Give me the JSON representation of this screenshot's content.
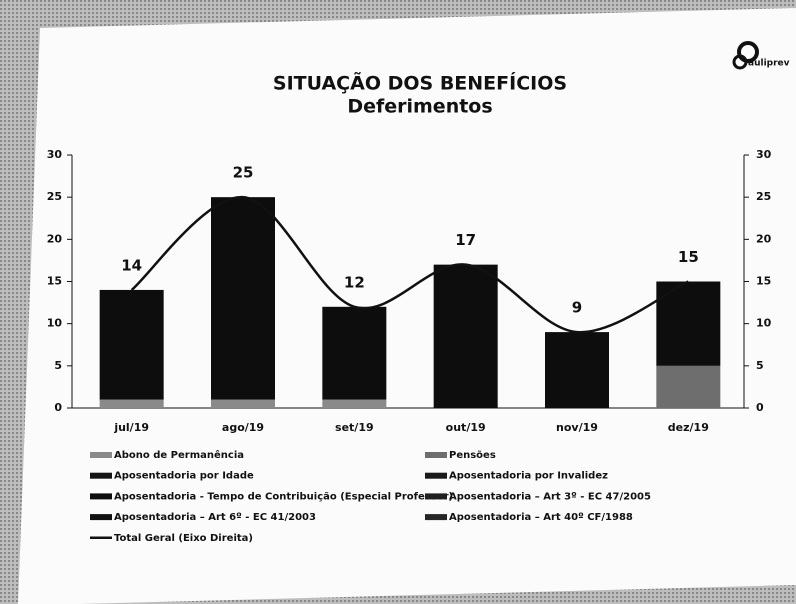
{
  "logo": "auliprev",
  "chart_data": {
    "type": "bar",
    "title": "SITUAÇÃO DOS BENEFÍCIOS",
    "subtitle": "Deferimentos",
    "categories": [
      "jul/19",
      "ago/19",
      "set/19",
      "out/19",
      "nov/19",
      "dez/19"
    ],
    "series": [
      {
        "name": "Abono de Permanência",
        "color": "#8a8a8a",
        "values": [
          1,
          1,
          1,
          0,
          0,
          0
        ]
      },
      {
        "name": "Pensões",
        "color": "#6e6e6e",
        "values": [
          0,
          0,
          0,
          0,
          0,
          5
        ]
      },
      {
        "name": "Aposentadoria por Idade",
        "color": "#141414",
        "values": [
          0,
          0,
          0,
          0,
          0,
          0
        ]
      },
      {
        "name": "Aposentadoria por Invalidez",
        "color": "#1a1a1a",
        "values": [
          0,
          0,
          0,
          0,
          0,
          0
        ]
      },
      {
        "name": "Aposentadoria  - Tempo de Contribuição (Especial Professor)",
        "color": "#0d0d0d",
        "values": [
          13,
          24,
          11,
          17,
          9,
          10
        ]
      },
      {
        "name": "Aposentadoria – Art 3º  - EC 47/2005",
        "color": "#202020",
        "values": [
          0,
          0,
          0,
          0,
          0,
          0
        ]
      },
      {
        "name": "Aposentadoria – Art 6º  - EC 41/2003",
        "color": "#111111",
        "values": [
          0,
          0,
          0,
          0,
          0,
          0
        ]
      },
      {
        "name": "Aposentadoria – Art 40º CF/1988",
        "color": "#262626",
        "values": [
          0,
          0,
          0,
          0,
          0,
          0
        ]
      },
      {
        "name": "Total Geral (Eixo Direita)",
        "color": "#111111",
        "type": "line",
        "axis": "y2",
        "values": [
          14,
          25,
          12,
          17,
          9,
          15
        ]
      }
    ],
    "ylim": [
      0,
      30
    ],
    "yticks": [
      0,
      5,
      10,
      15,
      20,
      25,
      30
    ],
    "y2lim": [
      0,
      30
    ],
    "y2ticks": [
      0,
      5,
      10,
      15,
      20,
      25,
      30
    ],
    "stacked": true,
    "grid": false
  }
}
